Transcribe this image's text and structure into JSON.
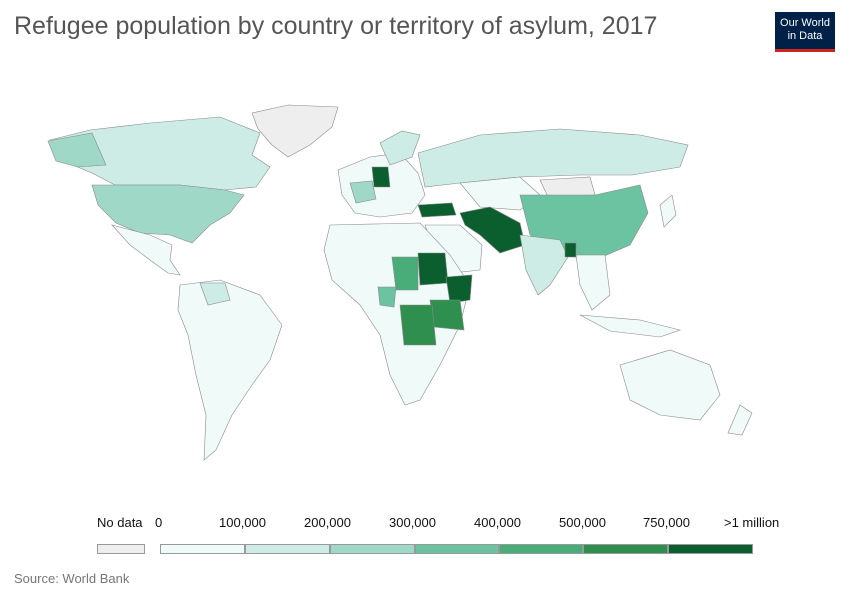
{
  "header": {
    "title": "Refugee population by country or territory of asylum, 2017",
    "logo_line1": "Our World",
    "logo_line2": "in Data"
  },
  "legend": {
    "nodata_label": "No data",
    "nodata_color": "#eeeeee",
    "bins": [
      {
        "label": "0",
        "color": "#effaf9"
      },
      {
        "label": "100,000",
        "color": "#cdece5"
      },
      {
        "label": "200,000",
        "color": "#9fd8c7"
      },
      {
        "label": "300,000",
        "color": "#6cc3a2"
      },
      {
        "label": "400,000",
        "color": "#48ad78"
      },
      {
        "label": "500,000",
        "color": "#2f8f4e"
      },
      {
        "label": "750,000",
        "color": "#0b5f2e"
      },
      {
        "label": ">1 million",
        "color": ""
      }
    ]
  },
  "source": "Source: World Bank"
}
